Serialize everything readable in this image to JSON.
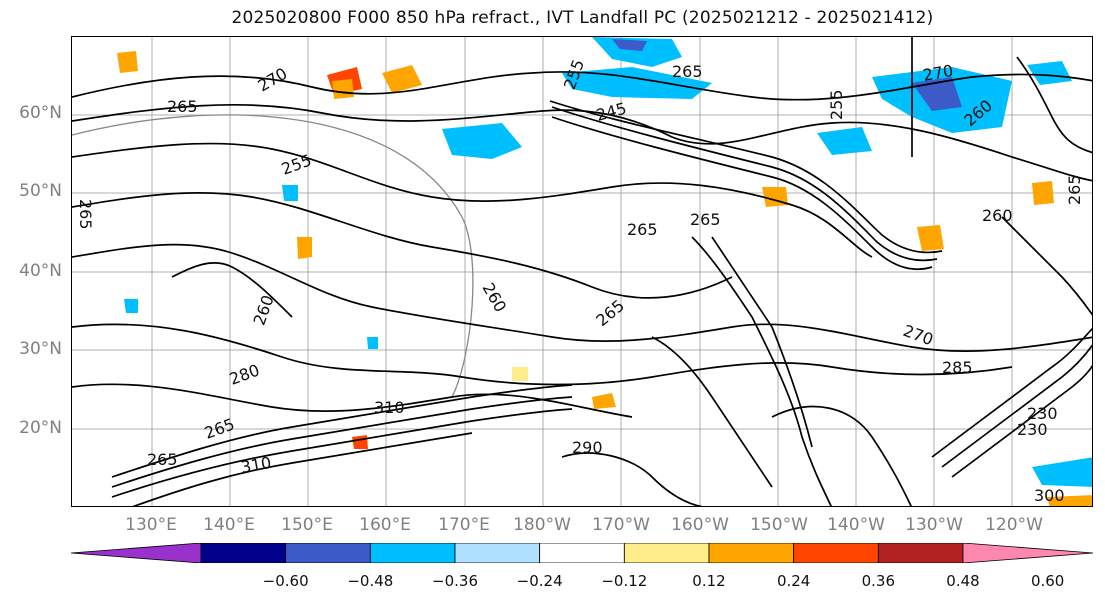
{
  "title": "2025020800 F000 850 hPa refract., IVT Landfall PC (2025021212 - 2025021412)",
  "map": {
    "projection_labels": {
      "latitudes": [
        "60°N",
        "50°N",
        "40°N",
        "30°N",
        "20°N"
      ],
      "longitudes": [
        "130°E",
        "140°E",
        "150°E",
        "160°E",
        "170°E",
        "180°W",
        "170°W",
        "160°W",
        "150°W",
        "140°W",
        "130°W",
        "120°W"
      ]
    },
    "contour_labels": [
      "265",
      "270",
      "255",
      "265",
      "260",
      "280",
      "265",
      "310",
      "265",
      "290",
      "310",
      "245",
      "265",
      "260",
      "255",
      "270",
      "265",
      "260",
      "265",
      "270",
      "285",
      "230",
      "230",
      "265",
      "260",
      "300",
      "265",
      "255"
    ],
    "line_color": "#000000",
    "grid_color": "#999999"
  },
  "colorbar": {
    "colors": [
      "#9932cc",
      "#00008b",
      "#3c5ac8",
      "#00bfff",
      "#b0e0ff",
      "#ffffff",
      "#ffec8b",
      "#ffa500",
      "#ff4500",
      "#b22222",
      "#ff88b0"
    ],
    "ticks": [
      "−0.60",
      "−0.48",
      "−0.36",
      "−0.24",
      "−0.12",
      "0.12",
      "0.24",
      "0.36",
      "0.48",
      "0.60"
    ]
  }
}
